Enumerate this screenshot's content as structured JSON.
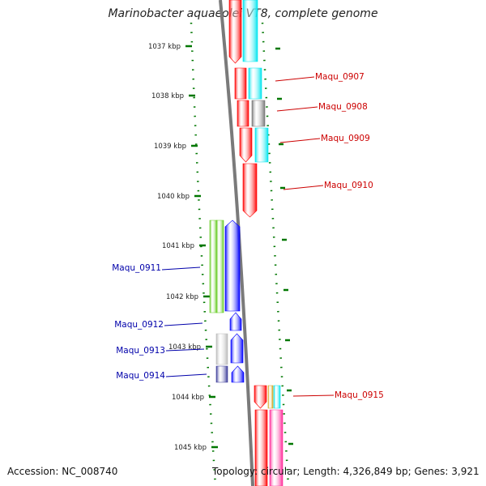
{
  "title": "Marinobacter aquaeolei VT8, complete genome",
  "ruler_ticks": [
    "1037 kbp",
    "1038 kbp",
    "1039 kbp",
    "1040 kbp",
    "1041 kbp",
    "1042 kbp",
    "1043 kbp",
    "1044 kbp",
    "1045 kbp"
  ],
  "gene_labels": [
    {
      "text": "Maqu_0907",
      "color": "#cc0000"
    },
    {
      "text": "Maqu_0908",
      "color": "#cc0000"
    },
    {
      "text": "Maqu_0909",
      "color": "#cc0000"
    },
    {
      "text": "Maqu_0910",
      "color": "#cc0000"
    },
    {
      "text": "Maqu_0911",
      "color": "#0000aa"
    },
    {
      "text": "Maqu_0912",
      "color": "#0000aa"
    },
    {
      "text": "Maqu_0913",
      "color": "#0000aa"
    },
    {
      "text": "Maqu_0914",
      "color": "#0000aa"
    },
    {
      "text": "Maqu_0915",
      "color": "#cc0000"
    }
  ],
  "footer": {
    "accession": "Accession: NC_008740",
    "topology": "Topology: circular; Length: 4,326,849 bp; Genes: 3,921"
  },
  "colors": {
    "forward_label": "#cc0000",
    "reverse_label": "#0000aa",
    "ruler_dots": "#007700",
    "backbone": "#7a7a7a",
    "red": "#ff0000",
    "cyan": "#00e5ee",
    "blue": "#0000ff",
    "green": "#66cc22",
    "gray": "#777777",
    "silver": "#bbbbbb",
    "navy": "#3a3a99",
    "pink": "#ff2d9a",
    "gold": "#d4a017"
  }
}
